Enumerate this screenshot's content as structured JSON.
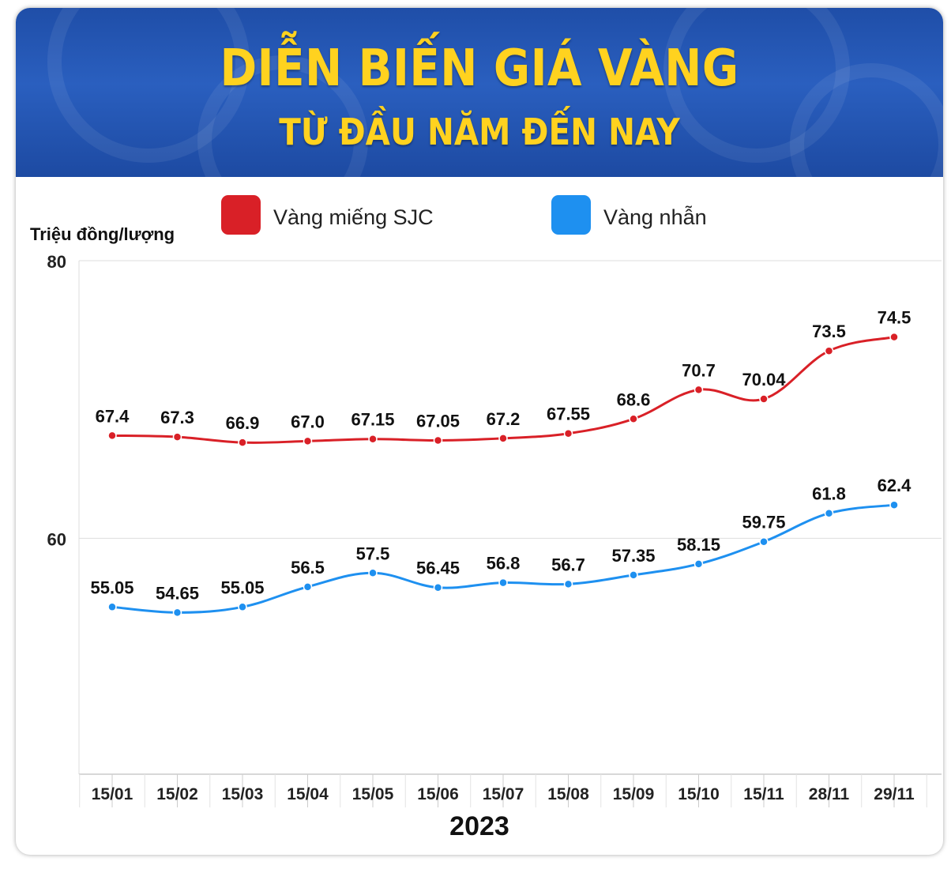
{
  "header": {
    "title": "DIỄN BIẾN GIÁ VÀNG",
    "subtitle": "TỪ ĐẦU NĂM ĐẾN NAY"
  },
  "legend": [
    {
      "label": "Vàng miếng SJC",
      "color": "#d92027"
    },
    {
      "label": "Vàng nhẫn",
      "color": "#1e90f0"
    }
  ],
  "chart_data": {
    "type": "line",
    "title": "DIỄN BIẾN GIÁ VÀNG",
    "subtitle": "TỪ ĐẦU NĂM ĐẾN NAY",
    "ylabel": "Triệu đồng/lượng",
    "xlabel": "2023",
    "categories": [
      "15/01",
      "15/02",
      "15/03",
      "15/04",
      "15/05",
      "15/06",
      "15/07",
      "15/08",
      "15/09",
      "15/10",
      "15/11",
      "28/11",
      "29/11"
    ],
    "ylim": [
      43,
      80
    ],
    "yticks": [
      60,
      80
    ],
    "grid": true,
    "legend_position": "top",
    "series": [
      {
        "name": "Vàng miếng SJC",
        "color": "#d92027",
        "values": [
          67.4,
          67.3,
          66.9,
          67.0,
          67.15,
          67.05,
          67.2,
          67.55,
          68.6,
          70.7,
          70.04,
          73.5,
          74.5
        ],
        "labels": [
          "67.4",
          "67.3",
          "66.9",
          "67.0",
          "67.15",
          "67.05",
          "67.2",
          "67.55",
          "68.6",
          "70.7",
          "70.04",
          "73.5",
          "74.5"
        ]
      },
      {
        "name": "Vàng nhẫn",
        "color": "#1e90f0",
        "values": [
          55.05,
          54.65,
          55.05,
          56.5,
          57.5,
          56.45,
          56.8,
          56.7,
          57.35,
          58.15,
          59.75,
          61.8,
          62.4
        ],
        "labels": [
          "55.05",
          "54.65",
          "55.05",
          "56.5",
          "57.5",
          "56.45",
          "56.8",
          "56.7",
          "57.35",
          "58.15",
          "59.75",
          "61.8",
          "62.4"
        ]
      }
    ]
  }
}
